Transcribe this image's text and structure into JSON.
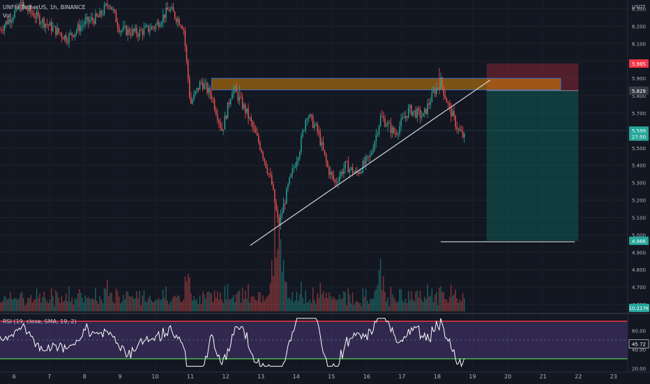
{
  "header": {
    "symbol_line": "UNFI / TetherUS, 1h, BINANCE",
    "vol_label": "Vol",
    "rsi_label": "RSI (19, close, SMA, 19, 2)"
  },
  "chart_data": {
    "type": "candlestick",
    "price_axis": {
      "unit": "USDT",
      "ticks": [
        "6.300",
        "6.200",
        "6.100",
        "6.000",
        "5.900",
        "5.800",
        "5.700",
        "5.600",
        "5.500",
        "5.400",
        "5.300",
        "5.200",
        "5.100",
        "5.000",
        "4.900",
        "4.800",
        "4.700",
        "4.600"
      ],
      "range": [
        4.56,
        6.35
      ]
    },
    "x_axis": {
      "ticks": [
        "6",
        "7",
        "8",
        "9",
        "10",
        "11",
        "12",
        "13",
        "14",
        "15",
        "16",
        "17",
        "18",
        "19",
        "20",
        "21",
        "22",
        "23"
      ],
      "range_days": [
        5.6,
        23.4
      ]
    },
    "price_labels": [
      {
        "text": "5.985",
        "value": 5.985,
        "color": "#f23645"
      },
      {
        "text": "5.829",
        "value": 5.829,
        "color": "#363a45"
      },
      {
        "text": "5.599",
        "value": 5.599,
        "color": "#26a69a"
      },
      {
        "text": "27:50",
        "value": 5.565,
        "color": "#26a69a"
      },
      {
        "text": "4.966",
        "value": 4.966,
        "color": "#26a69a"
      }
    ],
    "volume_label": {
      "text": "10.217K",
      "color": "#26a69a"
    },
    "key_prices": [
      {
        "t": 5.6,
        "p": 6.18
      },
      {
        "t": 6.2,
        "p": 6.32
      },
      {
        "t": 6.6,
        "p": 6.26
      },
      {
        "t": 7.0,
        "p": 6.2
      },
      {
        "t": 7.5,
        "p": 6.13
      },
      {
        "t": 8.0,
        "p": 6.22
      },
      {
        "t": 8.4,
        "p": 6.25
      },
      {
        "t": 8.7,
        "p": 6.34
      },
      {
        "t": 9.0,
        "p": 6.18
      },
      {
        "t": 9.5,
        "p": 6.16
      },
      {
        "t": 10.0,
        "p": 6.2
      },
      {
        "t": 10.4,
        "p": 6.3
      },
      {
        "t": 10.8,
        "p": 6.2
      },
      {
        "t": 11.0,
        "p": 5.75
      },
      {
        "t": 11.3,
        "p": 5.88
      },
      {
        "t": 11.6,
        "p": 5.8
      },
      {
        "t": 11.9,
        "p": 5.6
      },
      {
        "t": 12.2,
        "p": 5.85
      },
      {
        "t": 12.6,
        "p": 5.7
      },
      {
        "t": 13.0,
        "p": 5.5
      },
      {
        "t": 13.3,
        "p": 5.3
      },
      {
        "t": 13.5,
        "p": 5.05
      },
      {
        "t": 13.8,
        "p": 5.3
      },
      {
        "t": 14.1,
        "p": 5.5
      },
      {
        "t": 14.3,
        "p": 5.7
      },
      {
        "t": 14.6,
        "p": 5.6
      },
      {
        "t": 14.9,
        "p": 5.38
      },
      {
        "t": 15.1,
        "p": 5.3
      },
      {
        "t": 15.4,
        "p": 5.4
      },
      {
        "t": 15.7,
        "p": 5.35
      },
      {
        "t": 16.1,
        "p": 5.45
      },
      {
        "t": 16.4,
        "p": 5.68
      },
      {
        "t": 16.8,
        "p": 5.58
      },
      {
        "t": 17.2,
        "p": 5.72
      },
      {
        "t": 17.6,
        "p": 5.68
      },
      {
        "t": 17.9,
        "p": 5.82
      },
      {
        "t": 18.1,
        "p": 5.88
      },
      {
        "t": 18.3,
        "p": 5.75
      },
      {
        "t": 18.6,
        "p": 5.6
      },
      {
        "t": 18.8,
        "p": 5.55
      }
    ],
    "annotations": {
      "resistance_zone": {
        "t1": 11.6,
        "t2": 21.5,
        "p1": 5.833,
        "p2": 5.9
      },
      "trendline": {
        "t1": 12.7,
        "p1": 4.94,
        "t2": 19.5,
        "p2": 5.89
      },
      "target_line": {
        "t1": 18.1,
        "t2": 21.9,
        "p": 4.96
      },
      "short_position": {
        "t1": 19.4,
        "t2": 22.0,
        "entry": 5.829,
        "stop": 5.985,
        "target": 4.966
      },
      "current_price_line": 5.599
    },
    "rsi": {
      "ticks": [
        "60.00",
        "40.00",
        "20.00"
      ],
      "overbought": 70,
      "oversold": 30,
      "mid": 50,
      "range": [
        18,
        76
      ],
      "current_label": "45.72",
      "current_value": 45.72,
      "band_color": "#7e57c2"
    },
    "colors": {
      "up": "#26a69a",
      "down": "#ef5350",
      "background": "#131722"
    }
  }
}
